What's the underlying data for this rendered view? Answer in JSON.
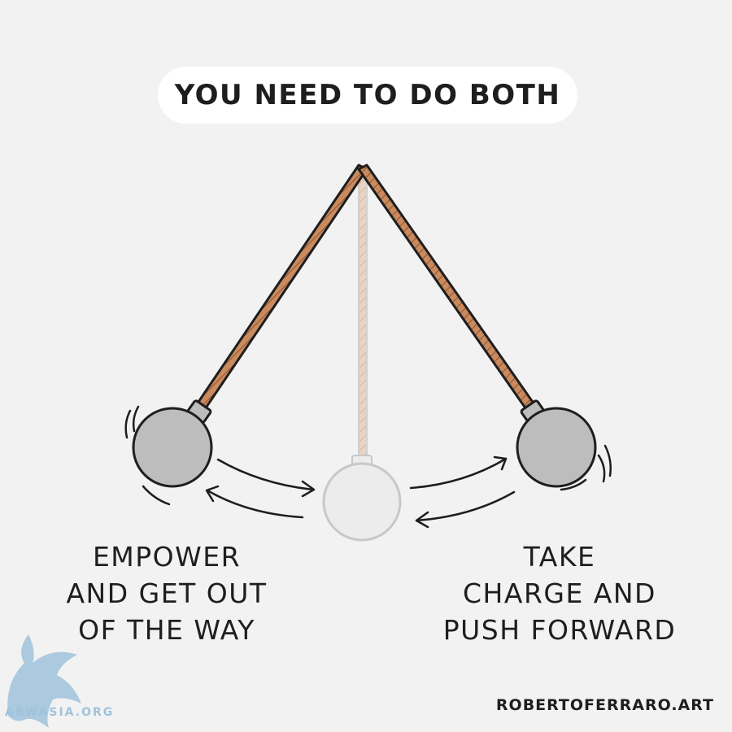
{
  "header": {
    "title": "YOU NEED TO DO BOTH"
  },
  "captions": {
    "left": [
      "EMPOWER",
      "AND GET OUT",
      "OF THE WAY"
    ],
    "right": [
      "TAKE",
      "CHARGE AND",
      "PUSH FORWARD"
    ]
  },
  "credit": "ROBERTOFERRARO.ART",
  "watermark": {
    "text": "ABWASIA.ORG"
  },
  "colors": {
    "background": "#f2f2f2",
    "rope": "#c98a5e",
    "rope_faded": "#e6cbb8",
    "ball": "#b8b8b8",
    "ball_faded": "#ececec",
    "outline": "#1e1e1e",
    "watermark": "#9fc3dc"
  },
  "icons": [
    "pendulum-pivot",
    "pendulum-ball-left",
    "pendulum-ball-center",
    "pendulum-ball-right",
    "swing-arrow",
    "motion-lines",
    "griffin-watermark-icon"
  ]
}
